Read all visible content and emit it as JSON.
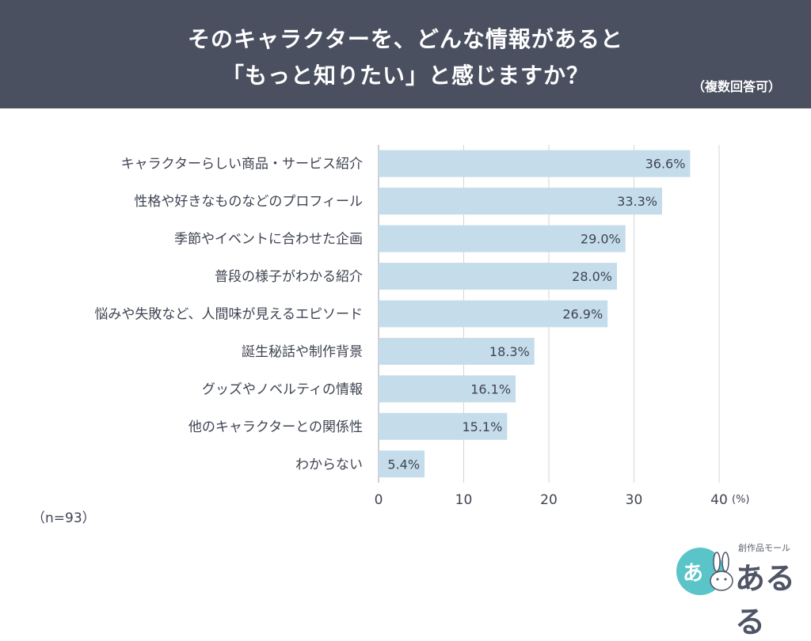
{
  "header": {
    "title_line1": "そのキャラクターを、どんな情報があると",
    "title_line2": "「もっと知りたい」と感じますか？",
    "note": "（複数回答可）"
  },
  "sample_size": "（n=93）",
  "logo": {
    "tagline": "創作品モール",
    "name": "あるる",
    "mark": "あ"
  },
  "colors": {
    "header_bg": "#4a5060",
    "bar": "#c5dceb",
    "text": "#3f4452",
    "grid": "#d4d6da",
    "logo": "#5bc4c9"
  },
  "chart_data": {
    "type": "bar",
    "orientation": "horizontal",
    "categories": [
      "キャラクターらしい商品・サービス紹介",
      "性格や好きなものなどのプロフィール",
      "季節やイベントに合わせた企画",
      "普段の様子がわかる紹介",
      "悩みや失敗など、人間味が見えるエピソード",
      "誕生秘話や制作背景",
      "グッズやノベルティの情報",
      "他のキャラクターとの関係性",
      "わからない"
    ],
    "values": [
      36.6,
      33.3,
      29.0,
      28.0,
      26.9,
      18.3,
      16.1,
      15.1,
      5.4
    ],
    "value_labels": [
      "36.6%",
      "33.3%",
      "29.0%",
      "28.0%",
      "26.9%",
      "18.3%",
      "16.1%",
      "15.1%",
      "5.4%"
    ],
    "xlim": [
      0,
      40
    ],
    "xticks": [
      "0",
      "10",
      "20",
      "30",
      "40"
    ],
    "xunit": "(%)",
    "grid": true
  }
}
